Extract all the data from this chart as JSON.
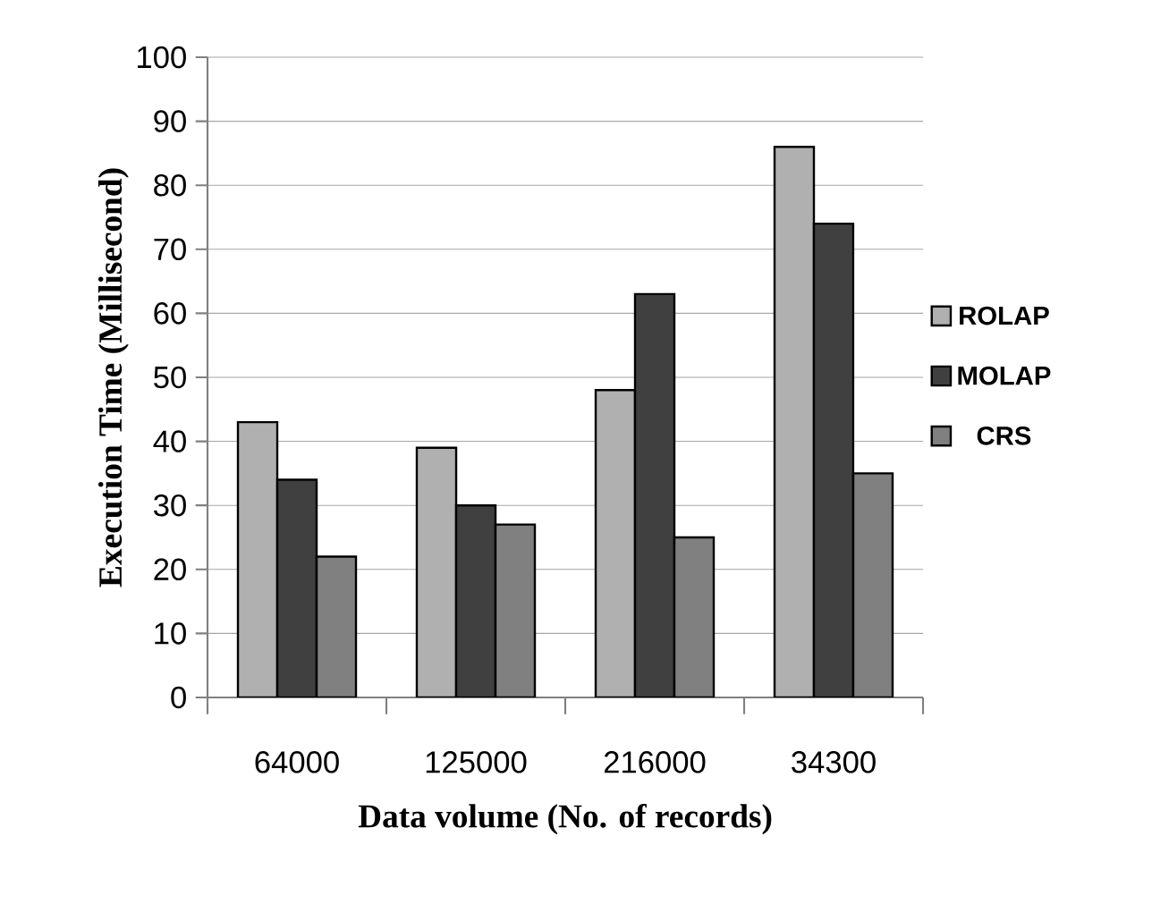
{
  "chart_data": {
    "type": "bar",
    "xlabel": "Data volume (No. of records)",
    "ylabel": "Execution Time (Millisecond)",
    "categories": [
      "64000",
      "125000",
      "216000",
      "34300"
    ],
    "series": [
      {
        "name": "ROLAP",
        "color": "#b0b0b0",
        "values": [
          43,
          39,
          48,
          86
        ]
      },
      {
        "name": "MOLAP",
        "color": "#404040",
        "values": [
          34,
          30,
          63,
          74
        ]
      },
      {
        "name": "CRS",
        "color": "#808080",
        "values": [
          22,
          27,
          25,
          35
        ]
      }
    ],
    "ylim": [
      0,
      100
    ],
    "yticks": [
      0,
      10,
      20,
      30,
      40,
      50,
      60,
      70,
      80,
      90,
      100
    ],
    "grid": "y",
    "legend": "right"
  }
}
